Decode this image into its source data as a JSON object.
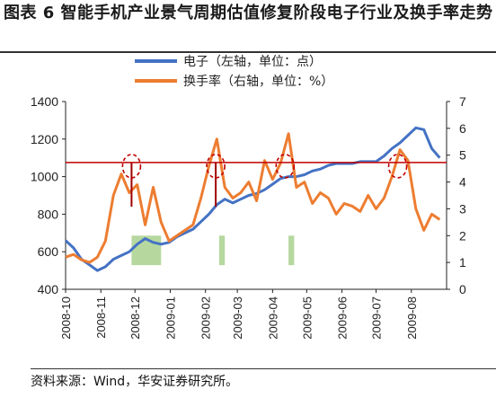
{
  "title": "图表 6 智能手机产业景气周期估值修复阶段电子行业及换手率走势",
  "source": "资料来源：Wind，华安证券研究所。",
  "chart_data": {
    "type": "line",
    "title": "图表 6 智能手机产业景气周期估值修复阶段电子行业及换手率走势",
    "xlabel": "",
    "ylabel": "",
    "x_ticks": [
      "2008-10",
      "2008-11",
      "2008-12",
      "2009-01",
      "2009-02",
      "2009-03",
      "2009-04",
      "2009-05",
      "2009-06",
      "2009-07",
      "2009-08"
    ],
    "ylim_left": [
      400,
      1400
    ],
    "yticks_left": [
      400,
      600,
      800,
      1000,
      1200,
      1400
    ],
    "ylim_right": [
      0,
      7
    ],
    "yticks_right": [
      0,
      1,
      2,
      3,
      4,
      5,
      6,
      7
    ],
    "legend_position": "top-center",
    "grid": false,
    "series": [
      {
        "name": "电子（左轴，单位：点）",
        "axis": "left",
        "color": "#4472C4",
        "x": [
          "2008-10-01",
          "2008-10-08",
          "2008-10-15",
          "2008-10-22",
          "2008-10-29",
          "2008-11-05",
          "2008-11-12",
          "2008-11-19",
          "2008-11-26",
          "2008-12-03",
          "2008-12-10",
          "2008-12-17",
          "2008-12-24",
          "2008-12-31",
          "2009-01-07",
          "2009-01-14",
          "2009-01-21",
          "2009-01-28",
          "2009-02-04",
          "2009-02-11",
          "2009-02-18",
          "2009-02-25",
          "2009-03-04",
          "2009-03-11",
          "2009-03-18",
          "2009-03-25",
          "2009-04-01",
          "2009-04-08",
          "2009-04-15",
          "2009-04-22",
          "2009-04-29",
          "2009-05-06",
          "2009-05-13",
          "2009-05-20",
          "2009-05-27",
          "2009-06-03",
          "2009-06-10",
          "2009-06-17",
          "2009-06-24",
          "2009-07-01",
          "2009-07-08",
          "2009-07-15",
          "2009-07-22",
          "2009-07-29",
          "2009-08-05",
          "2009-08-12",
          "2009-08-19",
          "2009-08-26"
        ],
        "values": [
          660,
          620,
          560,
          530,
          500,
          520,
          560,
          580,
          600,
          640,
          670,
          650,
          640,
          650,
          680,
          700,
          720,
          760,
          800,
          850,
          880,
          860,
          880,
          900,
          910,
          930,
          960,
          990,
          1000,
          1000,
          1010,
          1030,
          1040,
          1060,
          1070,
          1070,
          1070,
          1080,
          1080,
          1080,
          1110,
          1150,
          1180,
          1220,
          1260,
          1250,
          1150,
          1100
        ]
      },
      {
        "name": "换手率（右轴，单位：%）",
        "axis": "right",
        "color": "#ED7D31",
        "x": [
          "2008-10-01",
          "2008-10-08",
          "2008-10-15",
          "2008-10-22",
          "2008-10-29",
          "2008-11-05",
          "2008-11-12",
          "2008-11-19",
          "2008-11-26",
          "2008-12-03",
          "2008-12-10",
          "2008-12-17",
          "2008-12-24",
          "2008-12-31",
          "2009-01-07",
          "2009-01-14",
          "2009-01-21",
          "2009-01-28",
          "2009-02-04",
          "2009-02-11",
          "2009-02-18",
          "2009-02-25",
          "2009-03-04",
          "2009-03-11",
          "2009-03-18",
          "2009-03-25",
          "2009-04-01",
          "2009-04-08",
          "2009-04-15",
          "2009-04-22",
          "2009-04-29",
          "2009-05-06",
          "2009-05-13",
          "2009-05-20",
          "2009-05-27",
          "2009-06-03",
          "2009-06-10",
          "2009-06-17",
          "2009-06-24",
          "2009-07-01",
          "2009-07-08",
          "2009-07-15",
          "2009-07-22",
          "2009-07-29",
          "2009-08-05",
          "2009-08-12",
          "2009-08-19",
          "2009-08-26"
        ],
        "values": [
          1.2,
          1.3,
          1.1,
          1.0,
          1.2,
          1.8,
          3.5,
          4.3,
          3.6,
          3.9,
          2.4,
          3.8,
          2.5,
          1.8,
          2.0,
          2.2,
          2.4,
          3.4,
          4.6,
          5.6,
          3.8,
          3.4,
          3.6,
          4.0,
          3.3,
          4.8,
          4.1,
          4.7,
          5.8,
          3.8,
          4.0,
          3.2,
          3.6,
          3.4,
          2.8,
          3.2,
          3.1,
          2.9,
          3.5,
          3.0,
          3.4,
          4.2,
          5.2,
          4.8,
          3.0,
          2.2,
          2.8,
          2.6
        ]
      }
    ],
    "annotations": {
      "reference_line": {
        "axis": "left",
        "value": 1075,
        "color": "#C00000"
      },
      "vertical_markers": [
        {
          "x": "2008-11-28",
          "from": 840,
          "to": 1075
        },
        {
          "x": "2009-02-10",
          "from": 840,
          "to": 1075
        }
      ],
      "highlight_circles": [
        "2008-11-28",
        "2009-02-10",
        "2009-04-12",
        "2009-07-20"
      ],
      "green_zones": [
        {
          "x_start": "2008-11-28",
          "x_end": "2008-12-24"
        },
        {
          "x_start": "2009-02-13",
          "x_end": "2009-02-18"
        },
        {
          "x_start": "2009-04-15",
          "x_end": "2009-04-20"
        }
      ]
    }
  }
}
